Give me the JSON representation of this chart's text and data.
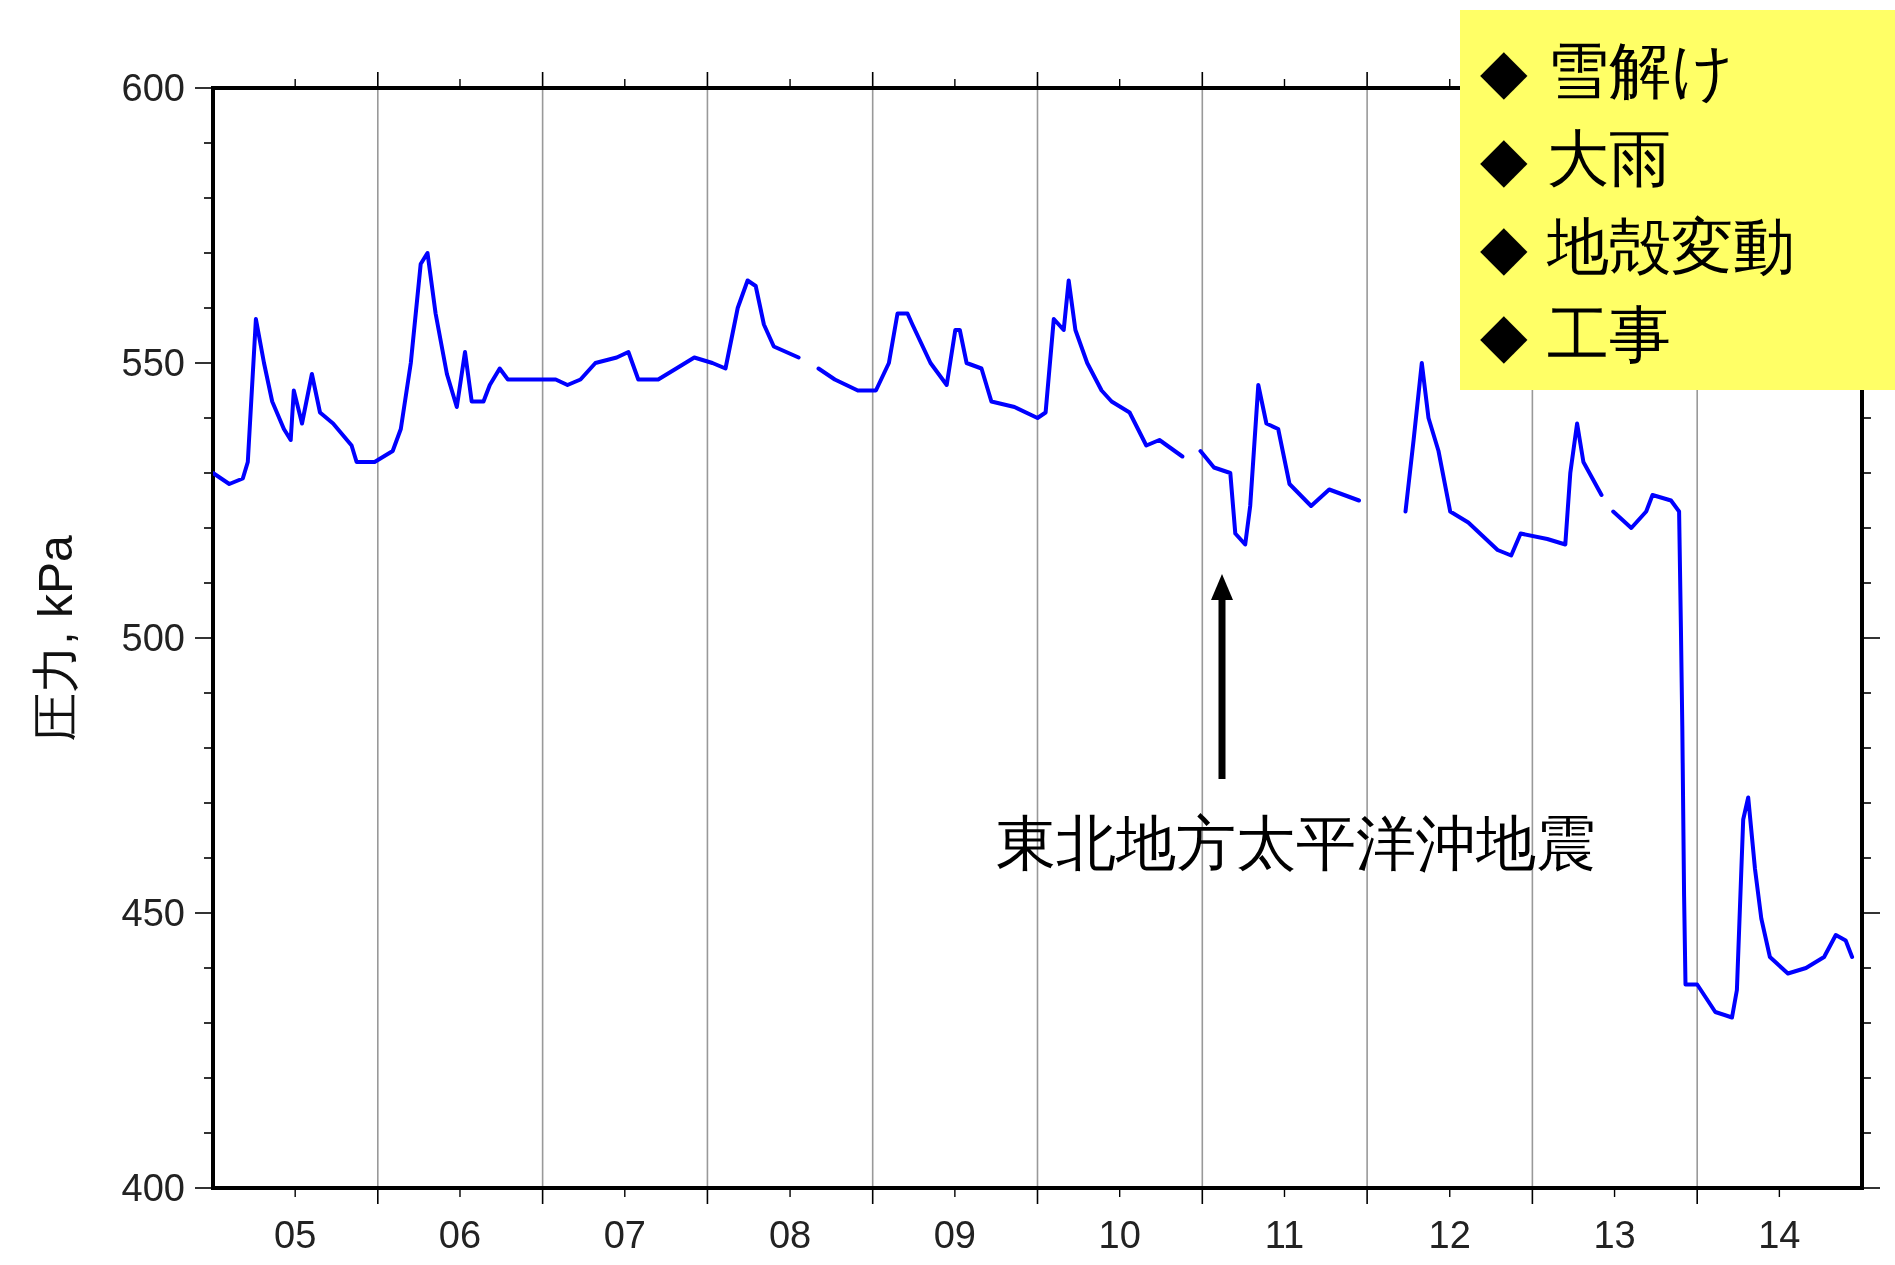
{
  "chart_data": {
    "type": "line",
    "ylabel": "圧力, kPa",
    "xlim": [
      "2005-01-01",
      "2015-01-01"
    ],
    "ylim": [
      400,
      600
    ],
    "xticks": [
      {
        "value": "2005-07-02",
        "label": "05"
      },
      {
        "value": "2006-01-01",
        "label": null
      },
      {
        "value": "2006-07-02",
        "label": "06"
      },
      {
        "value": "2007-01-01",
        "label": null
      },
      {
        "value": "2007-07-02",
        "label": "07"
      },
      {
        "value": "2008-01-01",
        "label": null
      },
      {
        "value": "2008-07-02",
        "label": "08"
      },
      {
        "value": "2009-01-01",
        "label": null
      },
      {
        "value": "2009-07-02",
        "label": "09"
      },
      {
        "value": "2010-01-01",
        "label": null
      },
      {
        "value": "2010-07-02",
        "label": "10"
      },
      {
        "value": "2011-01-01",
        "label": null
      },
      {
        "value": "2011-07-02",
        "label": "11"
      },
      {
        "value": "2012-01-01",
        "label": null
      },
      {
        "value": "2012-07-02",
        "label": "12"
      },
      {
        "value": "2013-01-01",
        "label": null
      },
      {
        "value": "2013-07-02",
        "label": "13"
      },
      {
        "value": "2014-01-01",
        "label": null
      },
      {
        "value": "2014-07-02",
        "label": "14"
      }
    ],
    "yticks": [
      400,
      {
        "value": 410,
        "label": null
      },
      {
        "value": 420,
        "label": null
      },
      {
        "value": 430,
        "label": null
      },
      {
        "value": 440,
        "label": null
      },
      450,
      {
        "value": 460,
        "label": null
      },
      {
        "value": 470,
        "label": null
      },
      {
        "value": 480,
        "label": null
      },
      {
        "value": 490,
        "label": null
      },
      500,
      {
        "value": 510,
        "label": null
      },
      {
        "value": 520,
        "label": null
      },
      {
        "value": 530,
        "label": null
      },
      {
        "value": 540,
        "label": null
      },
      550,
      {
        "value": 560,
        "label": null
      },
      {
        "value": 570,
        "label": null
      },
      {
        "value": 580,
        "label": null
      },
      {
        "value": 590,
        "label": null
      },
      600
    ],
    "grid": "x",
    "marker": "none",
    "line_style": "solid",
    "annotations": [
      "◆ 雪解け",
      "◆ 大雨",
      "◆ 地殻変動",
      "◆ 工事",
      "東北地方太平洋沖地震"
    ],
    "series": [
      {
        "color": "#0000ff",
        "x": [
          "2005-01-01",
          "2005-02-06",
          "2005-03-08",
          "2005-03-19",
          "2005-04-06",
          "2005-04-24",
          "2005-05-12",
          "2005-06-07",
          "2005-06-22",
          "2005-06-29",
          "2005-07-17",
          "2005-08-08",
          "2005-08-26",
          "2005-09-24",
          "2005-11-04",
          "2005-11-15",
          "2005-12-25",
          "2006-02-03",
          "2006-02-21",
          "2006-03-15",
          "2006-04-06",
          "2006-04-21",
          "2006-05-09",
          "2006-06-03",
          "2006-06-25",
          "2006-07-13",
          "2006-07-28",
          "2006-08-23",
          "2006-09-06",
          "2006-09-28",
          "2006-10-16",
          "2006-12-06",
          "2007-01-30",
          "2007-02-25",
          "2007-03-26",
          "2007-04-28",
          "2007-06-14",
          "2007-07-10",
          "2007-08-01",
          "2007-09-14",
          "2007-10-24",
          "2007-12-03",
          "2008-01-12",
          "2008-02-10",
          "2008-03-08",
          "2008-03-30",
          "2008-04-17",
          "2008-05-05",
          "2008-05-27",
          "2008-07-21",
          "2008-08-12",
          "2008-09-03",
          "2008-10-09",
          "2008-11-29",
          "2009-01-08",
          "2009-02-06",
          "2009-02-25",
          "2009-03-19",
          "2009-03-30",
          "2009-05-09",
          "2009-06-14",
          "2009-07-03",
          "2009-07-13",
          "2009-07-28",
          "2009-08-30",
          "2009-09-21",
          "2009-11-11",
          "2010-01-01",
          "2010-01-19",
          "2010-02-06",
          "2010-02-28",
          "2010-03-11",
          "2010-03-26",
          "2010-04-21",
          "2010-05-23",
          "2010-06-14",
          "2010-07-24",
          "2010-08-30",
          "2010-09-28",
          "2010-11-18",
          "2010-12-10",
          "2010-12-28",
          "2011-01-27",
          "2011-03-04",
          "2011-03-15",
          "2011-04-06",
          "2011-04-17",
          "2011-05-05",
          "2011-05-23",
          "2011-06-18",
          "2011-07-13",
          "2011-08-30",
          "2011-10-09",
          "2011-11-11",
          "2011-12-14",
          "2012-02-03",
          "2012-03-26",
          "2012-04-13",
          "2012-05-01",
          "2012-05-16",
          "2012-06-07",
          "2012-07-03",
          "2012-08-12",
          "2012-10-16",
          "2012-11-15",
          "2012-12-06",
          "2013-02-03",
          "2013-03-15",
          "2013-03-26",
          "2013-04-10",
          "2013-04-24",
          "2013-06-03",
          "2013-06-18",
          "2013-06-29",
          "2013-08-08",
          "2013-09-10",
          "2013-09-24",
          "2013-11-04",
          "2013-11-22",
          "2013-11-26",
          "2013-11-29",
          "2013-12-03",
          "2013-12-06",
          "2014-01-01",
          "2014-02-10",
          "2014-03-19",
          "2014-03-30",
          "2014-04-13",
          "2014-04-24",
          "2014-05-09",
          "2014-05-23",
          "2014-06-11",
          "2014-07-21",
          "2014-08-30",
          "2014-10-09",
          "2014-11-04",
          "2014-11-26",
          "2014-12-10"
        ],
        "values": [
          530,
          528,
          529,
          532,
          558,
          550,
          543,
          538,
          536,
          545,
          539,
          548,
          541,
          539,
          535,
          532,
          532,
          534,
          538,
          550,
          568,
          570,
          559,
          548,
          542,
          552,
          543,
          543,
          546,
          549,
          547,
          547,
          547,
          546,
          547,
          550,
          551,
          552,
          547,
          547,
          549,
          551,
          550,
          549,
          560,
          565,
          564,
          557,
          553,
          551,
          null,
          549,
          547,
          545,
          545,
          550,
          559,
          559,
          557,
          550,
          546,
          556,
          556,
          550,
          549,
          543,
          542,
          540,
          541,
          558,
          556,
          565,
          556,
          550,
          545,
          543,
          541,
          535,
          536,
          533,
          null,
          534,
          531,
          530,
          519,
          517,
          524,
          546,
          539,
          538,
          528,
          524,
          527,
          526,
          525,
          null,
          523,
          536,
          550,
          540,
          534,
          523,
          521,
          516,
          515,
          519,
          518,
          517,
          530,
          539,
          532,
          526,
          null,
          523,
          520,
          523,
          526,
          525,
          523,
          502,
          484,
          453,
          437,
          437,
          432,
          431,
          436,
          467,
          471,
          458,
          449,
          442,
          439,
          440,
          442,
          446,
          445,
          442
        ]
      }
    ]
  }
}
